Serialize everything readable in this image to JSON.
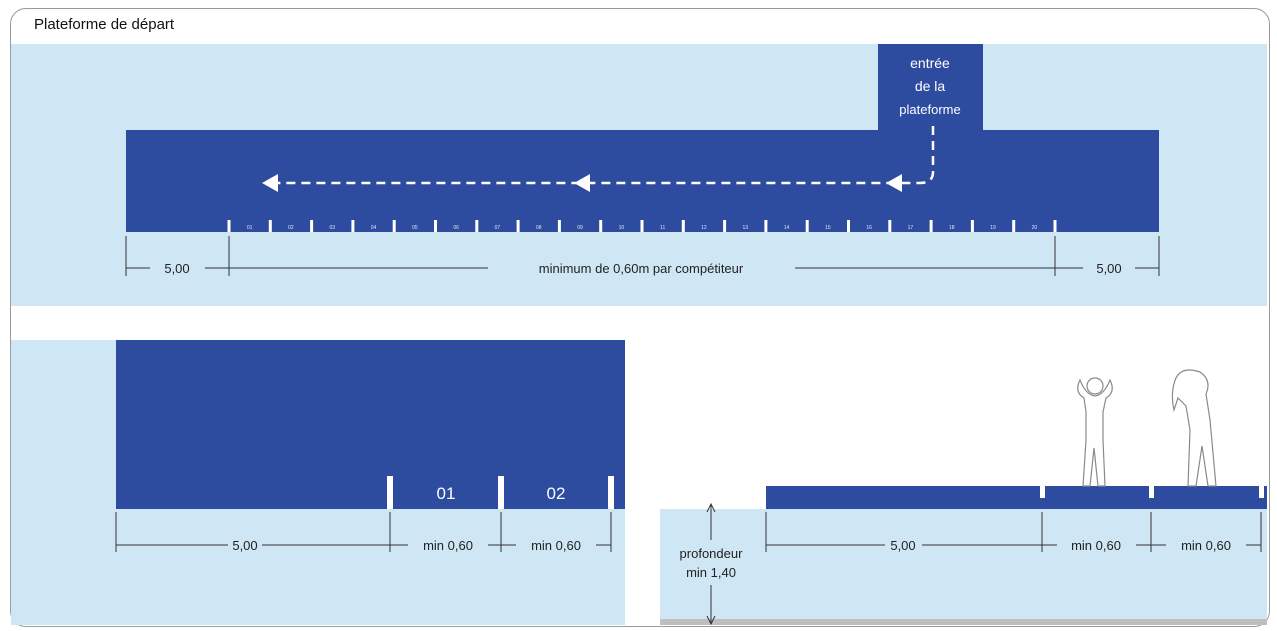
{
  "title": "Plateforme de départ",
  "colors": {
    "water": "#cfe6f4",
    "platform": "#2e4c9f",
    "marker": "#ffffff",
    "dim_line": "#333333"
  },
  "entrance_label": [
    "entrée",
    "de la",
    "plateforme"
  ],
  "lanes_small": [
    "01",
    "02",
    "03",
    "04",
    "05",
    "06",
    "07",
    "08",
    "09",
    "10",
    "11",
    "12",
    "13",
    "14",
    "15",
    "16",
    "17",
    "18",
    "19",
    "20"
  ],
  "top_dims": {
    "left": "5,00",
    "middle": "minimum de 0,60m par compétiteur",
    "right": "5,00"
  },
  "bottom_left": {
    "lanes": [
      "01",
      "02"
    ],
    "dims": [
      "5,00",
      "min 0,60",
      "min 0,60"
    ]
  },
  "bottom_right": {
    "depth": [
      "profondeur",
      "min 1,40"
    ],
    "dims": [
      "5,00",
      "min 0,60",
      "min 0,60"
    ]
  },
  "icons": [
    "arrow-icon",
    "person-icon"
  ]
}
